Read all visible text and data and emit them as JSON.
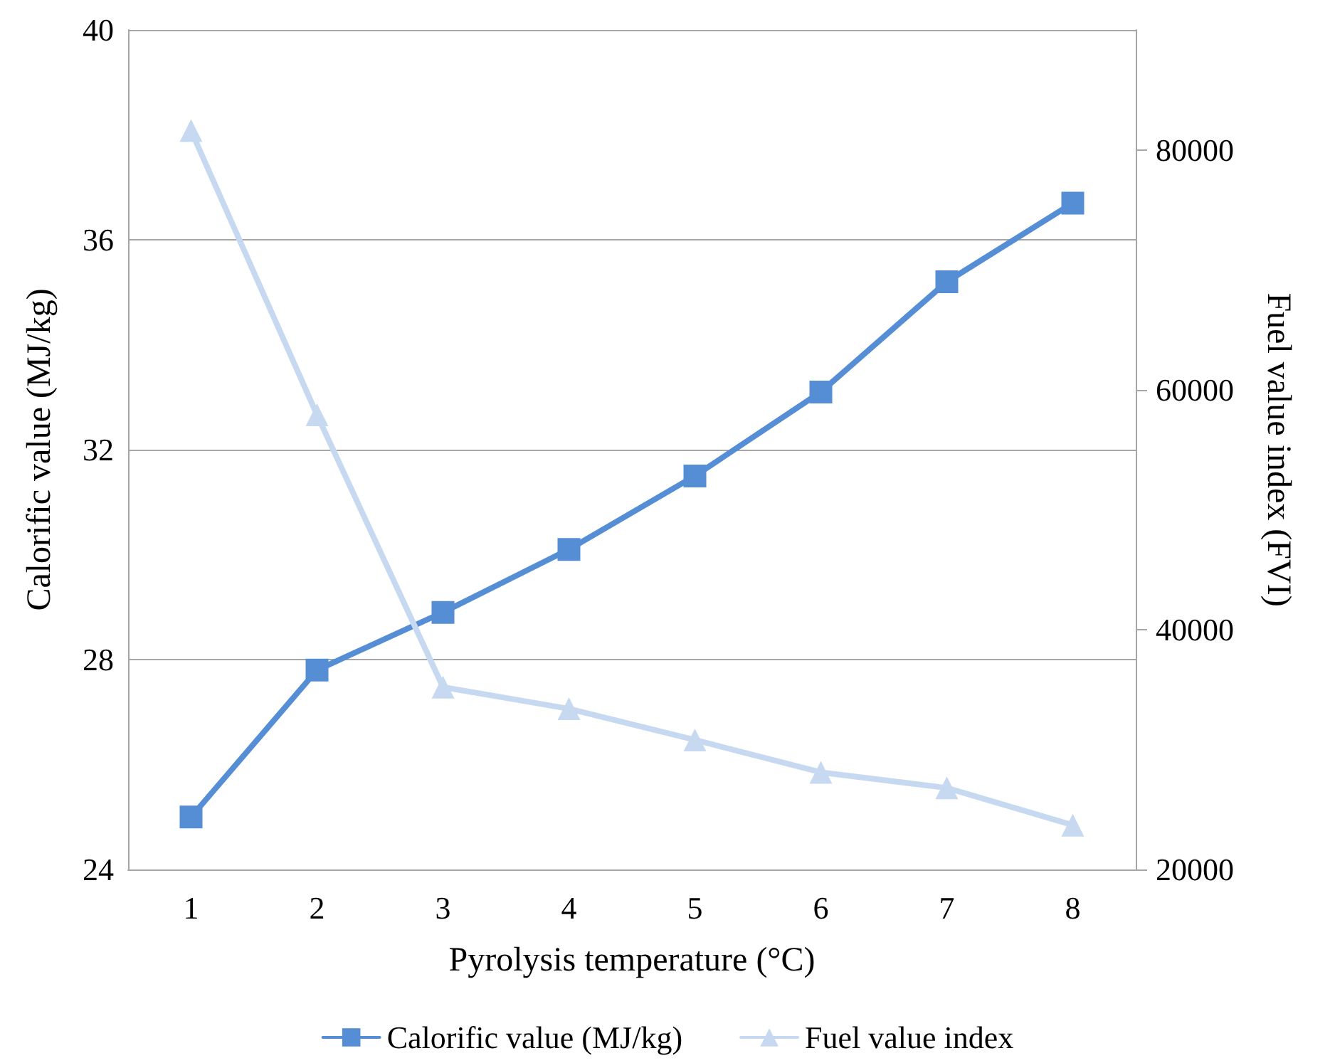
{
  "chart_data": {
    "type": "line",
    "xlabel": "Pyrolysis temperature (°C)",
    "ylabel": "Calorific value (MJ/kg)",
    "y2label": "Fuel value index (FVI)",
    "categories": [
      "1",
      "2",
      "3",
      "4",
      "5",
      "6",
      "7",
      "8"
    ],
    "series": [
      {
        "name": "Calorific value (MJ/kg)",
        "color": "#558ed5",
        "marker": "square",
        "values": [
          25.0,
          27.8,
          28.9,
          30.1,
          31.5,
          33.1,
          35.2,
          36.7
        ]
      },
      {
        "name": "Fuel value index",
        "color": "#c6d9f1",
        "marker": "triangle",
        "axis": "y2",
        "values": [
          81600,
          57900,
          35200,
          33400,
          30800,
          28100,
          26800,
          23700
        ]
      }
    ],
    "ylim": [
      24,
      40
    ],
    "yticks": [
      24,
      28,
      32,
      36,
      40
    ],
    "y2lim": [
      20000,
      90000
    ],
    "y2ticks": [
      20000,
      40000,
      60000,
      80000
    ],
    "grid": "y",
    "legend": "bottom",
    "line_style": "solid"
  }
}
